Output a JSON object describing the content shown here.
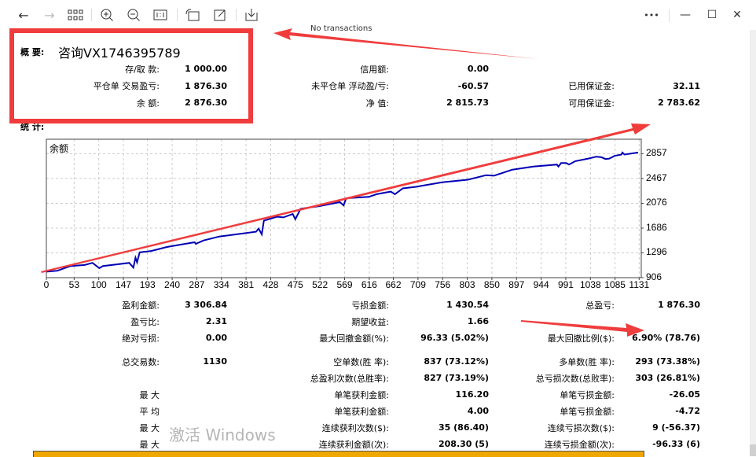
{
  "toolbar": {
    "icons": [
      "back-icon",
      "forward-icon",
      "grid-icon",
      "zoom-in-icon",
      "zoom-out-icon",
      "actual-size-icon",
      "rotate-icon",
      "edit-icon",
      "save-icon"
    ],
    "more_label": "•••",
    "minimize_label": "—",
    "maximize_label": "☐",
    "close_label": "✕"
  },
  "overlay_text": "No transactions",
  "summary": {
    "title": "概 要:",
    "contact": "咨询VX1746395789",
    "rows": [
      {
        "label": "存/取 款:",
        "value": "1 000.00"
      },
      {
        "label": "平仓单 交易盈亏:",
        "value": "1 876.30"
      },
      {
        "label": "余 额:",
        "value": "2 876.30"
      }
    ],
    "middle": [
      {
        "label": "信用额:",
        "value": "0.00"
      },
      {
        "label": "未平仓单 浮动盈/亏:",
        "value": "-60.57"
      },
      {
        "label": "净 值:",
        "value": "2 815.73"
      }
    ],
    "right": [
      {
        "label": "已用保证金:",
        "value": "32.11"
      },
      {
        "label": "可用保证金:",
        "value": "2 783.62"
      }
    ]
  },
  "stats_title": "统 计:",
  "chart_data": {
    "type": "line",
    "title": "余额",
    "xlabel": "",
    "ylabel": "",
    "x_ticks": [
      0,
      53,
      100,
      147,
      193,
      240,
      287,
      334,
      381,
      428,
      475,
      522,
      569,
      616,
      662,
      709,
      756,
      803,
      850,
      897,
      944,
      991,
      1038,
      1085,
      1131
    ],
    "y_ticks": [
      906,
      1296,
      1686,
      2076,
      2467,
      2857
    ],
    "xlim": [
      0,
      1135
    ],
    "ylim": [
      906,
      3085
    ],
    "grid": true,
    "y_axis_side": "right",
    "color": "#0000b4",
    "series": [
      {
        "x": [
          0,
          21,
          46,
          73,
          88,
          101,
          108,
          158,
          166,
          170,
          173,
          178,
          200,
          230,
          265,
          283,
          285,
          300,
          330,
          370,
          400,
          405,
          411,
          415,
          440,
          452,
          470,
          475,
          485,
          520,
          560,
          567,
          572,
          615,
          630,
          657,
          665,
          680,
          705,
          755,
          804,
          839,
          854,
          889,
          929,
          974,
          977,
          982,
          992,
          997,
          1009,
          1034,
          1049,
          1059,
          1067,
          1074,
          1084,
          1097,
          1099,
          1103,
          1129
        ],
        "y": [
          1000,
          1015,
          1089,
          1105,
          1139,
          1056,
          1089,
          1139,
          1064,
          1221,
          1147,
          1305,
          1326,
          1389,
          1438,
          1463,
          1438,
          1492,
          1554,
          1596,
          1629,
          1679,
          1588,
          1804,
          1866,
          1854,
          1907,
          1825,
          1991,
          2032,
          2094,
          2044,
          2157,
          2178,
          2219,
          2261,
          2219,
          2311,
          2336,
          2406,
          2448,
          2519,
          2511,
          2606,
          2656,
          2686,
          2656,
          2710,
          2710,
          2686,
          2739,
          2780,
          2810,
          2801,
          2773,
          2780,
          2822,
          2843,
          2876,
          2843,
          2876
        ]
      }
    ]
  },
  "stats": {
    "left": [
      {
        "label": "盈利金额:",
        "value": "3 306.84"
      },
      {
        "label": "盈亏比:",
        "value": "2.31"
      },
      {
        "label": "绝对亏损:",
        "value": "0.00"
      },
      {
        "label": "总交易数:",
        "value": "1130"
      },
      {
        "label": "",
        "value": ""
      },
      {
        "label": "最 大",
        "value": ""
      },
      {
        "label": "平 均",
        "value": ""
      },
      {
        "label": "最 大",
        "value": ""
      },
      {
        "label": "最 大",
        "value": ""
      }
    ],
    "middle": [
      {
        "label": "亏损金额:",
        "value": "1 430.54"
      },
      {
        "label": "期望收益:",
        "value": "1.66"
      },
      {
        "label": "最大回撤金额(%):",
        "value": "96.33 (5.02%)"
      },
      {
        "label": "空单数(胜 率):",
        "value": "837 (73.12%)"
      },
      {
        "label": "总盈利次数(总胜率):",
        "value": "827 (73.19%)"
      },
      {
        "label": "单笔获利金额:",
        "value": "116.20"
      },
      {
        "label": "单笔获利金额:",
        "value": "4.00"
      },
      {
        "label": "连续获利次数($):",
        "value": "35 (86.40)"
      },
      {
        "label": "连续获利金额(次):",
        "value": "208.30 (5)"
      }
    ],
    "right": [
      {
        "label": "总盈亏:",
        "value": "1 876.30"
      },
      {
        "label": "",
        "value": ""
      },
      {
        "label": "最大回撤比例($):",
        "value": "6.90% (78.76)"
      },
      {
        "label": "多单数(胜 率):",
        "value": "293 (73.38%)"
      },
      {
        "label": "总亏损次数(总败率):",
        "value": "303 (26.81%)"
      },
      {
        "label": "单笔亏损金额:",
        "value": "-26.05"
      },
      {
        "label": "单笔亏损金额:",
        "value": "-4.72"
      },
      {
        "label": "连续亏损次数($):",
        "value": "9 (-56.37)"
      },
      {
        "label": "连续亏损金额(次):",
        "value": "-96.33 (6)"
      }
    ]
  },
  "watermark": "激活 Windows",
  "colors": {
    "annotation": "#f03c3c",
    "line": "#0000b4",
    "footer_bar": "#f0a800"
  }
}
